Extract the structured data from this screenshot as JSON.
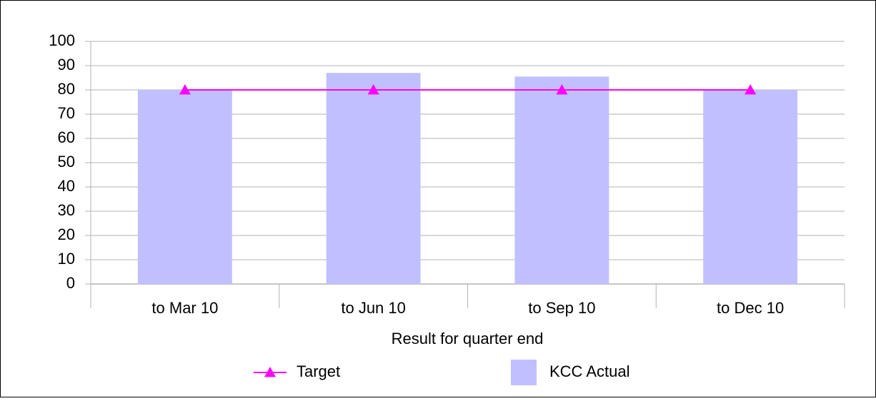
{
  "chart_data": {
    "type": "bar",
    "x_label": "Result for quarter end",
    "categories": [
      "to Mar 10",
      "to Jun 10",
      "to Sep 10",
      "to Dec 10"
    ],
    "series": [
      {
        "name": "Target",
        "type": "line",
        "color": "#ff00ff",
        "values": [
          80,
          80,
          80,
          80
        ]
      },
      {
        "name": "KCC Actual",
        "type": "bar",
        "color": "#c0c0ff",
        "values": [
          80,
          87,
          85.5,
          80
        ]
      }
    ],
    "ylim": [
      0,
      100
    ],
    "yticks": [
      0,
      10,
      20,
      30,
      40,
      50,
      60,
      70,
      80,
      90,
      100
    ],
    "grid": true,
    "legend": "bottom"
  }
}
